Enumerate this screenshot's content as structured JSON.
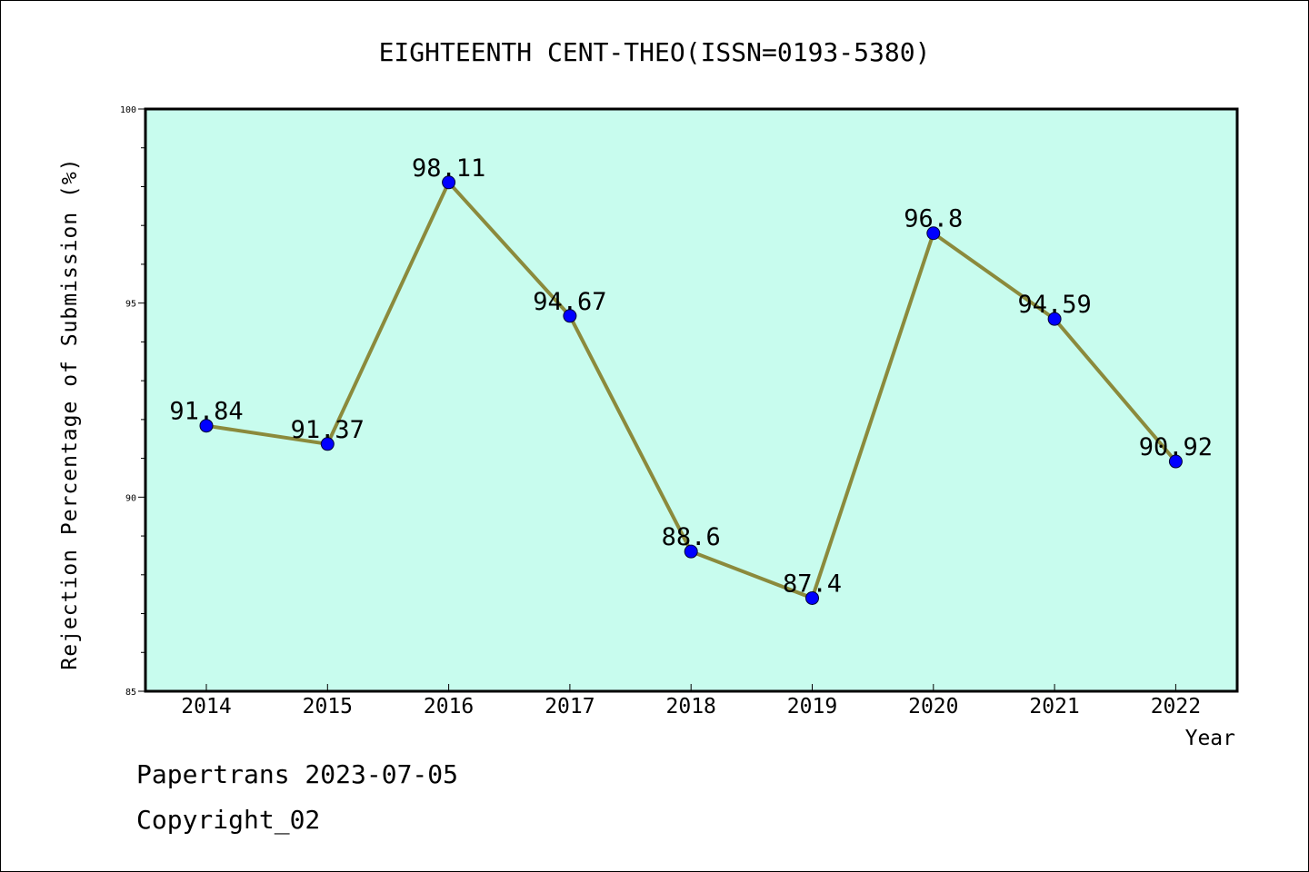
{
  "chart_data": {
    "type": "line",
    "title": "EIGHTEENTH CENT-THEO(ISSN=0193-5380)",
    "xlabel": "Year",
    "ylabel": "Rejection Percentage of Submission (%)",
    "categories": [
      "2014",
      "2015",
      "2016",
      "2017",
      "2018",
      "2019",
      "2020",
      "2021",
      "2022"
    ],
    "values": [
      91.84,
      91.37,
      98.11,
      94.67,
      88.6,
      87.4,
      96.8,
      94.59,
      90.92
    ],
    "data_labels": [
      "91.84",
      "91.37",
      "98.11",
      "94.67",
      "88.6",
      "87.4",
      "96.8",
      "94.59",
      "90.92"
    ],
    "ylim": [
      85,
      100
    ],
    "yticks": [
      "85",
      "90",
      "95",
      "100"
    ],
    "grid": false,
    "colors": {
      "plot_background": "#c8fcee",
      "line": "#8b8a3c",
      "marker": "#0000ff"
    }
  },
  "footer": {
    "line1": "Papertrans 2023-07-05",
    "line2": "Copyright_02"
  }
}
